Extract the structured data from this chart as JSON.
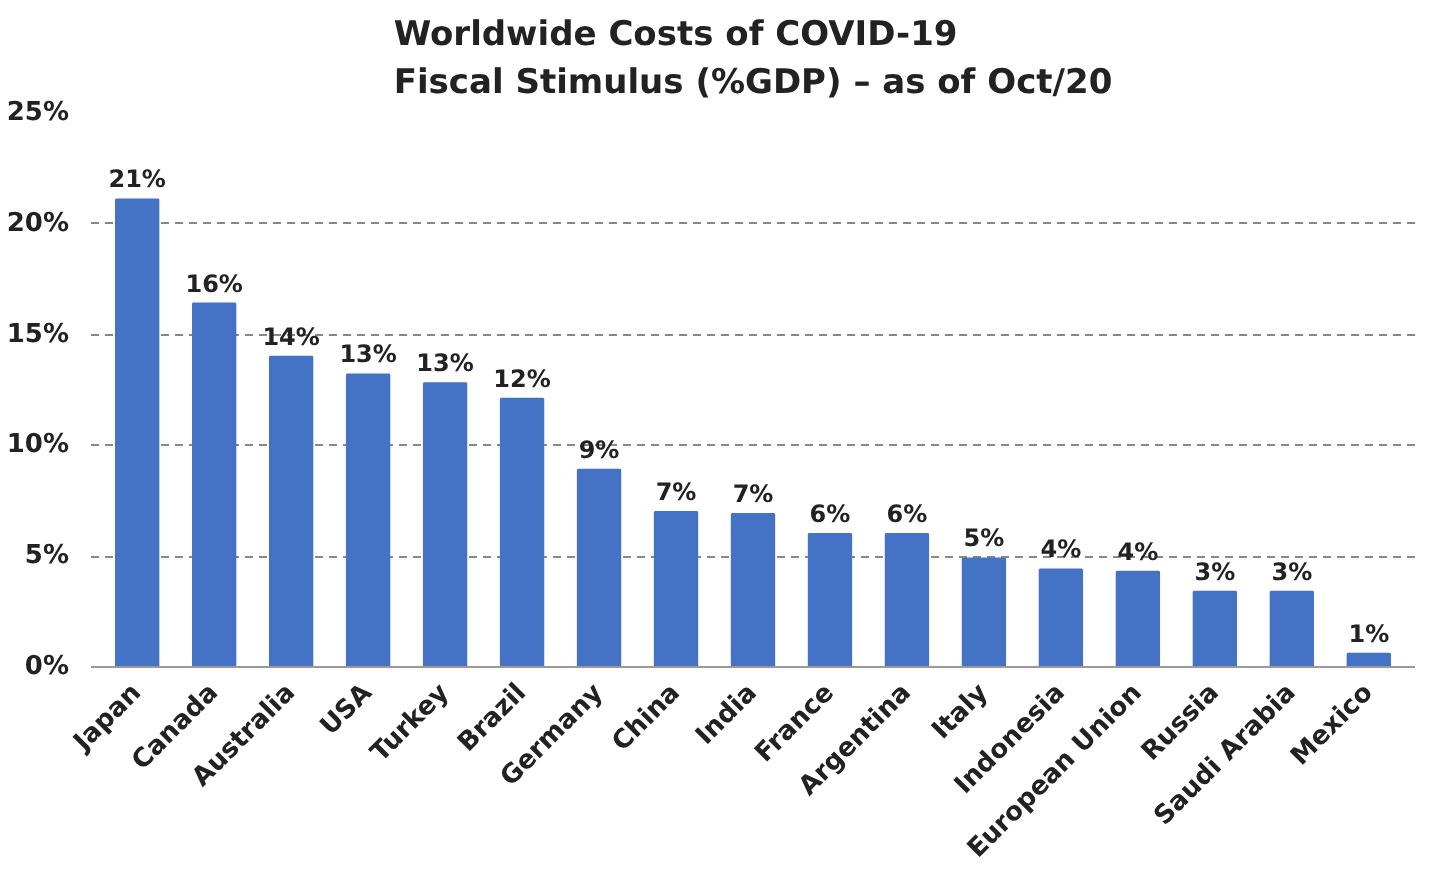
{
  "chart_data": {
    "type": "bar",
    "title": "Worldwide Costs of COVID-19\nFiscal Stimulus (%GDP) – as of Oct/20",
    "categories": [
      "Japan",
      "Canada",
      "Australia",
      "USA",
      "Turkey",
      "Brazil",
      "Germany",
      "China",
      "India",
      "France",
      "Argentina",
      "Italy",
      "Indonesia",
      "European Union",
      "Russia",
      "Saudi Arabia",
      "Mexico"
    ],
    "values": [
      21.1,
      16.4,
      14.0,
      13.2,
      12.8,
      12.1,
      8.9,
      7.0,
      6.9,
      6.0,
      6.0,
      4.9,
      4.4,
      4.3,
      3.4,
      3.4,
      0.6
    ],
    "value_labels": [
      "21%",
      "16%",
      "14%",
      "13%",
      "13%",
      "12%",
      "9%",
      "7%",
      "7%",
      "6%",
      "6%",
      "5%",
      "4%",
      "4%",
      "3%",
      "3%",
      "1%"
    ],
    "color": "#4472c4",
    "ylim": [
      0,
      25
    ],
    "yticks": [
      {
        "value": 0,
        "label": "0%"
      },
      {
        "value": 5,
        "label": "5%"
      },
      {
        "value": 10,
        "label": "10%"
      },
      {
        "value": 15,
        "label": "15%"
      },
      {
        "value": 20,
        "label": "20%"
      },
      {
        "value": 25,
        "label": "25%"
      }
    ],
    "grid": "y"
  }
}
